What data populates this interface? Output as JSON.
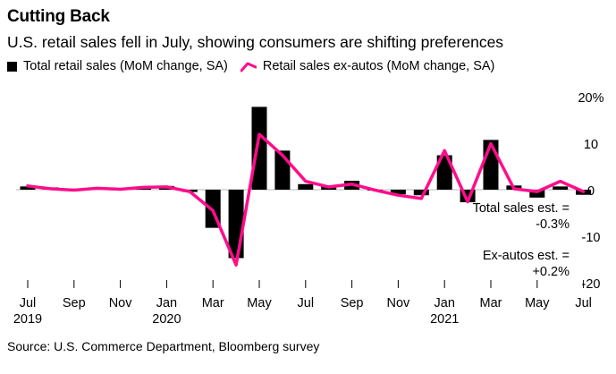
{
  "title": "Cutting Back",
  "subtitle": "U.S. retail sales fell in July, showing consumers are shifting preferences",
  "source": "Source: U.S. Commerce Department, Bloomberg survey",
  "colors": {
    "bars": "#000000",
    "line": "#ff0d8b",
    "gridline": "#bbbbbb"
  },
  "chart_data": {
    "type": "bar",
    "categories": [
      "Jul 2019",
      "Aug 2019",
      "Sep 2019",
      "Oct 2019",
      "Nov 2019",
      "Dec 2019",
      "Jan 2020",
      "Feb 2020",
      "Mar 2020",
      "Apr 2020",
      "May 2020",
      "Jun 2020",
      "Jul 2020",
      "Aug 2020",
      "Sep 2020",
      "Oct 2020",
      "Nov 2020",
      "Dec 2020",
      "Jan 2021",
      "Feb 2021",
      "Mar 2021",
      "Apr 2021",
      "May 2021",
      "Jun 2021",
      "Jul 2021"
    ],
    "series": [
      {
        "name": "Total retail sales (MoM change, SA)",
        "type": "bar",
        "values": [
          0.7,
          0.5,
          -0.2,
          0.4,
          0.2,
          0.3,
          0.8,
          -0.5,
          -8.2,
          -14.7,
          17.8,
          8.4,
          1.2,
          0.8,
          1.9,
          -0.1,
          -1.0,
          -1.2,
          7.4,
          -2.7,
          10.7,
          0.9,
          -1.7,
          0.7,
          -1.1
        ]
      },
      {
        "name": "Retail sales ex-autos (MoM change, SA)",
        "type": "line",
        "values": [
          0.8,
          0.2,
          -0.1,
          0.3,
          0.1,
          0.5,
          0.6,
          -0.4,
          -4.5,
          -16.2,
          11.9,
          7.4,
          1.8,
          0.6,
          1.2,
          -0.1,
          -1.2,
          -1.9,
          8.4,
          -2.6,
          9.9,
          0.2,
          -0.4,
          1.8,
          -0.4
        ]
      }
    ],
    "x_tick_labels": [
      {
        "index": 0,
        "label": "Jul",
        "year": "2019"
      },
      {
        "index": 2,
        "label": "Sep",
        "year": ""
      },
      {
        "index": 4,
        "label": "Nov",
        "year": ""
      },
      {
        "index": 6,
        "label": "Jan",
        "year": "2020"
      },
      {
        "index": 8,
        "label": "Mar",
        "year": ""
      },
      {
        "index": 10,
        "label": "May",
        "year": ""
      },
      {
        "index": 12,
        "label": "Jul",
        "year": ""
      },
      {
        "index": 14,
        "label": "Sep",
        "year": ""
      },
      {
        "index": 16,
        "label": "Nov",
        "year": ""
      },
      {
        "index": 18,
        "label": "Jan",
        "year": "2021"
      },
      {
        "index": 20,
        "label": "Mar",
        "year": ""
      },
      {
        "index": 22,
        "label": "May",
        "year": ""
      },
      {
        "index": 24,
        "label": "Jul",
        "year": ""
      }
    ],
    "y_ticks": [
      {
        "value": 20,
        "label": "20%"
      },
      {
        "value": 10,
        "label": "10"
      },
      {
        "value": 0,
        "label": "0"
      },
      {
        "value": -10,
        "label": "-10"
      },
      {
        "value": -20,
        "label": "-20"
      }
    ],
    "ylim": [
      -20,
      20
    ],
    "y_axis_side": "right",
    "annotations": [
      {
        "text": "Total sales est. =",
        "value": "-0.3%"
      },
      {
        "text": "Ex-autos est. =",
        "value": "+0.2%"
      }
    ],
    "legend_position": "top-left"
  }
}
